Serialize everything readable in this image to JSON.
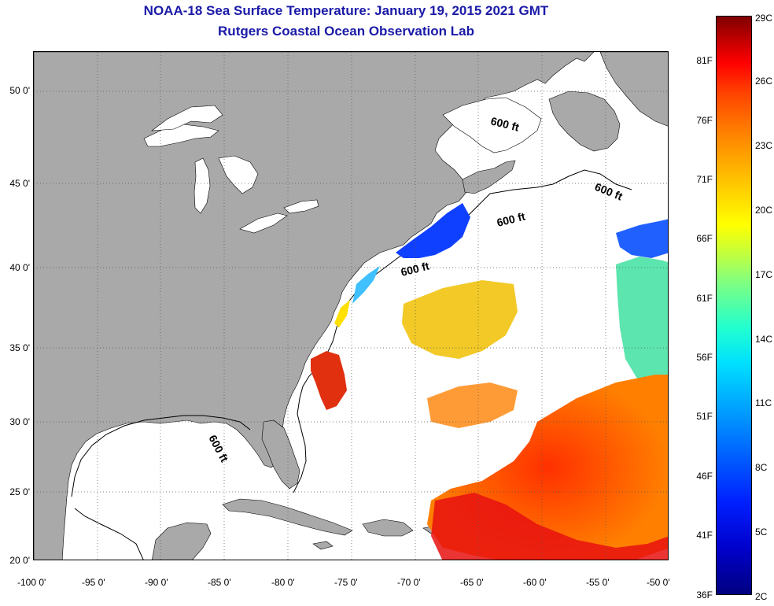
{
  "title": "NOAA-18 Sea Surface Temperature:  January 19, 2015 2021 GMT",
  "subtitle": "Rutgers Coastal Ocean Observation Lab",
  "map": {
    "lon_range": [
      -100,
      -50
    ],
    "lat_range": [
      20,
      52
    ],
    "lat_ticks": [
      "50 0'",
      "45 0'",
      "40 0'",
      "35 0'",
      "30 0'",
      "25 0'",
      "20 0'"
    ],
    "lon_ticks": [
      "-100 0'",
      "-95 0'",
      "-90 0'",
      "-85 0'",
      "-80 0'",
      "-75 0'",
      "-70 0'",
      "-65 0'",
      "-60 0'",
      "-55 0'",
      "-50 0'"
    ],
    "isobath_labels": [
      "600 ft",
      "600 ft",
      "600 ft",
      "600 ft",
      "600 ft"
    ],
    "colors": {
      "land": "#a9a9a9",
      "ocean": "#ffffff",
      "isobath": "#000000"
    }
  },
  "colorbar": {
    "fahrenheit": [
      "81F",
      "76F",
      "71F",
      "66F",
      "61F",
      "56F",
      "51F",
      "46F",
      "41F",
      "36F"
    ],
    "celsius": [
      "29C",
      "26C",
      "23C",
      "20C",
      "17C",
      "14C",
      "11C",
      "8C",
      "5C",
      "2C"
    ],
    "range_f": [
      36,
      84
    ],
    "range_c": [
      2,
      29
    ]
  }
}
